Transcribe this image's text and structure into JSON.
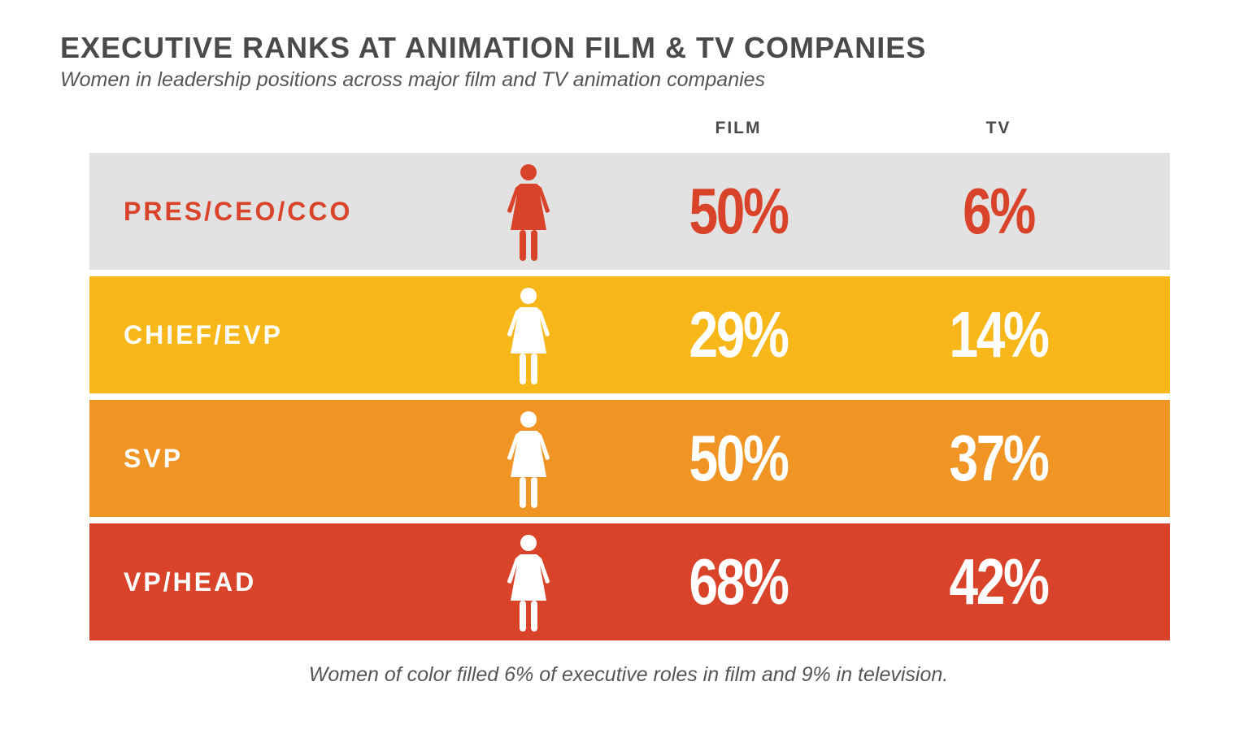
{
  "title": "EXECUTIVE RANKS AT ANIMATION FILM & TV COMPANIES",
  "subtitle": "Women in leadership positions across major film and TV animation companies",
  "footnote": "Women of color filled 6% of executive roles in film and 9% in television.",
  "chart_data": {
    "type": "table",
    "title": "EXECUTIVE RANKS AT ANIMATION FILM & TV COMPANIES",
    "columns": [
      "FILM",
      "TV"
    ],
    "rows": [
      {
        "label": "PRES/CEO/CCO",
        "film": "50%",
        "tv": "6%",
        "film_value": 50,
        "tv_value": 6,
        "bg": "#e2e2e2",
        "fg": "#d9432a",
        "icon_color": "#d9432a"
      },
      {
        "label": "CHIEF/EVP",
        "film": "29%",
        "tv": "14%",
        "film_value": 29,
        "tv_value": 14,
        "bg": "#f7b719",
        "fg": "#ffffff",
        "icon_color": "#ffffff"
      },
      {
        "label": "SVP",
        "film": "50%",
        "tv": "37%",
        "film_value": 50,
        "tv_value": 37,
        "bg": "#f09423",
        "fg": "#ffffff",
        "icon_color": "#ffffff"
      },
      {
        "label": "VP/HEAD",
        "film": "68%",
        "tv": "42%",
        "film_value": 68,
        "tv_value": 42,
        "bg": "#d9432a",
        "fg": "#ffffff",
        "icon_color": "#ffffff"
      }
    ],
    "icon": "woman-icon"
  }
}
